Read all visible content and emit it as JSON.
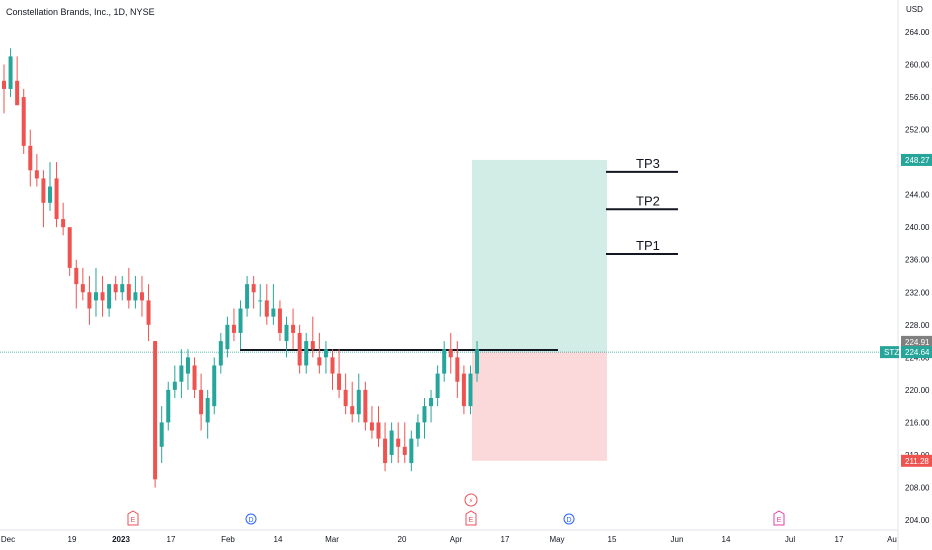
{
  "header": {
    "symbol_title": "Constellation Brands, Inc., 1D, NYSE",
    "currency": "USD"
  },
  "price_axis": {
    "ticks": [
      "264.00",
      "260.00",
      "256.00",
      "252.00",
      "248.00",
      "244.00",
      "240.00",
      "236.00",
      "232.00",
      "228.00",
      "224.00",
      "220.00",
      "216.00",
      "212.00",
      "208.00",
      "204.00"
    ],
    "tick_values": [
      264,
      260,
      256,
      252,
      248,
      244,
      240,
      236,
      232,
      228,
      224,
      220,
      216,
      212,
      208,
      204
    ]
  },
  "time_axis": {
    "labels": [
      "Dec",
      "19",
      "2023",
      "17",
      "Feb",
      "14",
      "Mar",
      "20",
      "Apr",
      "17",
      "May",
      "15",
      "Jun",
      "14",
      "Jul",
      "17",
      "Au"
    ],
    "bold_labels": [
      "2023"
    ]
  },
  "price_tags": {
    "tp_level": "248.27",
    "current_minus": "224.91",
    "ticker": "STZ",
    "current": "224.64",
    "stop_level": "211.28"
  },
  "annotations": {
    "tp3": "TP3",
    "tp2": "TP2",
    "tp1": "TP1"
  },
  "events": [
    {
      "type": "earnings",
      "label": "E",
      "date": "2023-01-05"
    },
    {
      "type": "dividend",
      "label": "D",
      "date": "2023-02-08"
    },
    {
      "type": "dividend",
      "label": "D",
      "date": "2023-05-04"
    },
    {
      "type": "earnings",
      "label": "E",
      "date": "2023-04-06"
    },
    {
      "type": "split",
      "label": "⚡",
      "date": "2023-04-06"
    },
    {
      "type": "earnings",
      "label": "E",
      "date": "2023-06-30"
    }
  ],
  "colors": {
    "up": "#26a69a",
    "down": "#ef5350",
    "target_zone": "#d1ede6",
    "stop_zone": "#fbd9db",
    "tp_tag": "#26a69a",
    "stop_tag": "#ef5350",
    "current_tag": "#26a69a",
    "gray_tag": "#808080",
    "earnings_event": "#e8505b",
    "dividend_event": "#2962ff",
    "future_earnings": "#e040a0"
  },
  "chart_data": {
    "type": "candlestick",
    "title": "Constellation Brands, Inc., 1D, NYSE",
    "ylabel": "USD",
    "ylim": [
      203,
      267
    ],
    "x_range": [
      "2022-12-01",
      "2023-07-31"
    ],
    "candles_ohlc": [
      [
        258,
        260,
        254,
        257
      ],
      [
        257,
        262,
        256,
        261
      ],
      [
        258,
        261,
        255,
        255
      ],
      [
        256,
        257,
        249,
        250
      ],
      [
        250,
        252,
        245,
        247
      ],
      [
        247,
        249,
        245,
        246
      ],
      [
        246,
        247,
        240,
        243
      ],
      [
        243,
        248,
        242,
        245
      ],
      [
        246,
        248,
        240,
        241
      ],
      [
        241,
        243,
        239,
        240
      ],
      [
        240,
        240,
        234,
        235
      ],
      [
        235,
        236,
        230,
        233
      ],
      [
        233,
        235,
        231,
        232
      ],
      [
        232,
        234,
        228,
        230
      ],
      [
        231,
        235,
        229,
        232
      ],
      [
        232,
        234,
        229,
        231
      ],
      [
        230,
        233,
        229,
        233
      ],
      [
        233,
        234,
        231,
        232
      ],
      [
        232,
        234,
        231,
        233
      ],
      [
        233,
        235,
        230,
        231
      ],
      [
        231,
        234,
        230,
        232
      ],
      [
        232,
        234,
        229,
        231
      ],
      [
        231,
        233,
        226,
        228
      ],
      [
        226,
        226,
        208,
        209
      ],
      [
        213,
        218,
        211,
        216
      ],
      [
        216,
        221,
        215,
        220
      ],
      [
        220,
        223,
        219,
        221
      ],
      [
        221,
        225,
        219,
        223
      ],
      [
        222,
        225,
        220,
        224
      ],
      [
        223,
        224,
        219,
        220
      ],
      [
        220,
        222,
        215,
        217
      ],
      [
        216,
        220,
        214,
        219
      ],
      [
        218,
        224,
        217,
        223
      ],
      [
        223,
        227,
        222,
        226
      ],
      [
        225,
        229,
        224,
        228
      ],
      [
        228,
        230,
        226,
        227
      ],
      [
        227,
        231,
        225,
        230
      ],
      [
        230,
        234,
        229,
        233
      ],
      [
        233,
        234,
        230,
        232
      ],
      [
        231,
        233,
        229,
        231
      ],
      [
        231,
        233,
        228,
        229
      ],
      [
        229,
        233,
        228,
        230
      ],
      [
        230,
        231,
        226,
        227
      ],
      [
        226,
        229,
        224,
        228
      ],
      [
        228,
        230,
        225,
        227
      ],
      [
        227,
        228,
        222,
        223
      ],
      [
        223,
        227,
        222,
        226
      ],
      [
        226,
        229,
        224,
        225
      ],
      [
        224,
        227,
        222,
        223
      ],
      [
        224,
        226,
        222,
        225
      ],
      [
        224,
        225,
        220,
        222
      ],
      [
        222,
        225,
        219,
        220
      ],
      [
        220,
        222,
        217,
        218
      ],
      [
        218,
        221,
        216,
        217
      ],
      [
        217,
        222,
        216,
        220
      ],
      [
        220,
        221,
        215,
        216
      ],
      [
        216,
        218,
        214,
        215
      ],
      [
        216,
        218,
        213,
        214
      ],
      [
        214,
        216,
        210,
        211
      ],
      [
        212,
        216,
        211,
        215
      ],
      [
        214,
        216,
        211,
        213
      ],
      [
        213,
        216,
        211,
        212
      ],
      [
        211,
        215,
        210,
        214
      ],
      [
        214,
        217,
        213,
        216
      ],
      [
        216,
        219,
        214,
        218
      ],
      [
        218,
        220,
        216,
        219
      ],
      [
        219,
        223,
        218,
        222
      ],
      [
        222,
        226,
        221,
        225
      ],
      [
        225,
        227,
        222,
        224
      ],
      [
        224,
        226,
        219,
        221
      ],
      [
        222,
        223,
        217,
        218
      ],
      [
        218,
        223,
        217,
        222
      ],
      [
        222,
        226,
        221,
        225
      ]
    ],
    "candle_dates_start": "2022-12-01",
    "levels": {
      "resistance_line": 224.9,
      "entry": 224.64,
      "tp_zone_top": 248.27,
      "stop_zone_bottom": 211.28,
      "tp3": 246.8,
      "tp2": 242.2,
      "tp1": 236.7
    }
  }
}
